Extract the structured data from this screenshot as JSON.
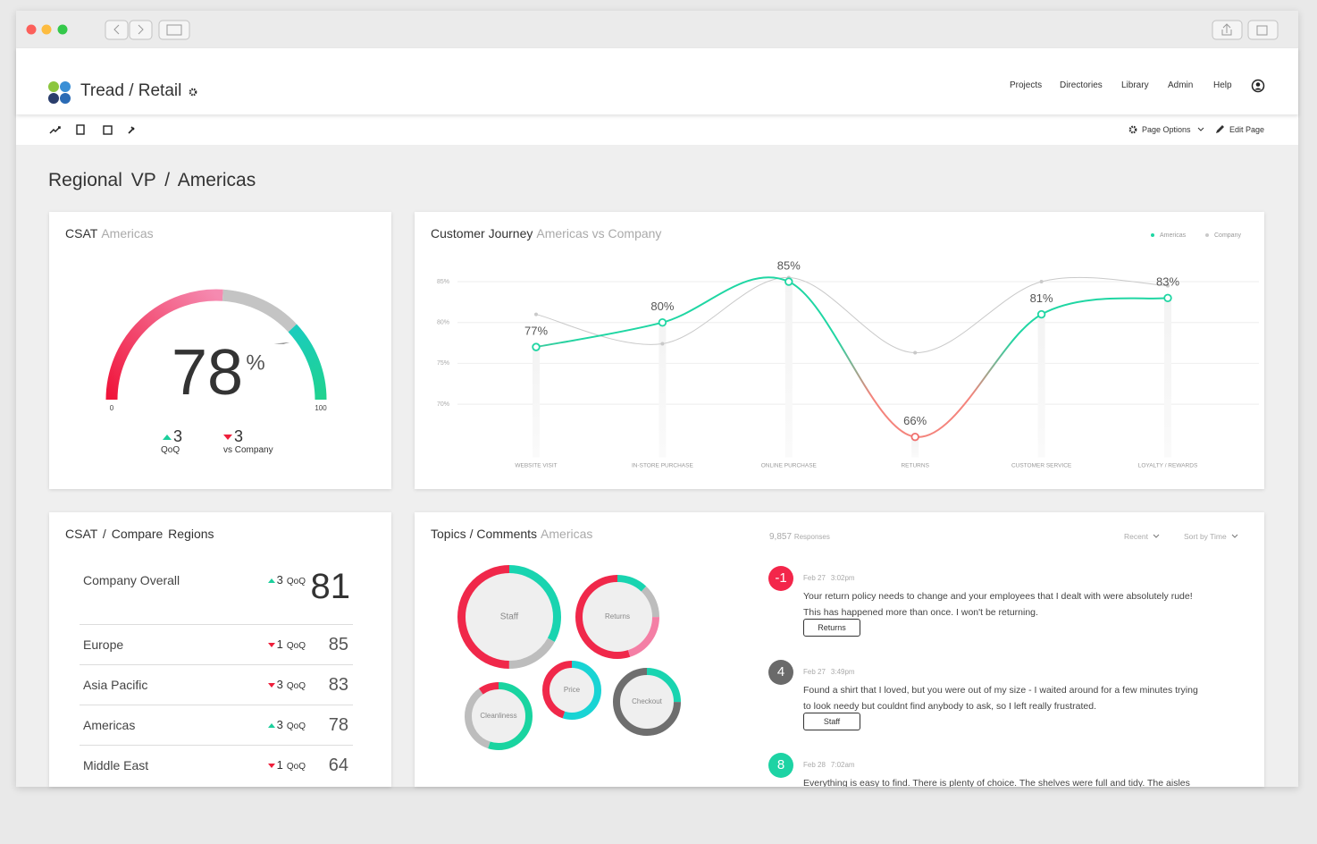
{
  "app": {
    "name": "Tread / Retail",
    "nav": [
      "Projects",
      "Directories",
      "Library",
      "Admin",
      "Help"
    ],
    "page_options": "Page Options",
    "edit_page": "Edit Page"
  },
  "page_title": "Regional VP / Americas",
  "colors": {
    "up": "#1ccf9c",
    "down": "#ee1f3b"
  },
  "csat": {
    "title": "CSAT",
    "subtitle": "Americas",
    "value": 78,
    "unit": "%",
    "min": 0,
    "max": 100,
    "changes": [
      {
        "value": 3,
        "trend": "up",
        "label": "QoQ"
      },
      {
        "value": 3,
        "trend": "down",
        "label": "vs Company"
      }
    ]
  },
  "chart_data": {
    "type": "line",
    "title": "Customer Journey",
    "subtitle": "Americas vs Company",
    "categories": [
      "WEBSITE VISIT",
      "IN-STORE PURCHASE",
      "ONLINE PURCHASE",
      "RETURNS",
      "CUSTOMER SERVICE",
      "LOYALTY / REWARDS"
    ],
    "series": [
      {
        "name": "Americas",
        "color": "#1fd6a3",
        "values": [
          77,
          80,
          85,
          66,
          81,
          83
        ],
        "value_labels": [
          "77%",
          "80%",
          "85%",
          "66%",
          "81%",
          "83%"
        ]
      },
      {
        "name": "Company",
        "color": "#c9c9c9",
        "values": [
          81,
          77.4,
          85.5,
          76.3,
          85,
          84.5
        ]
      }
    ],
    "ylim": [
      63.5,
      88
    ],
    "yticks": [
      {
        "value": 70,
        "label": "70%"
      },
      {
        "value": 75,
        "label": "75%"
      },
      {
        "value": 80,
        "label": "80%"
      },
      {
        "value": 85,
        "label": "85%"
      }
    ],
    "grid": true,
    "legend": "top-right"
  },
  "compare": {
    "title": "CSAT / Compare Regions",
    "period_label": "QoQ",
    "rows": [
      {
        "name": "Company Overall",
        "change": 3,
        "trend": "up",
        "score": 81
      },
      {
        "name": "Europe",
        "change": 1,
        "trend": "down",
        "score": 85
      },
      {
        "name": "Asia Pacific",
        "change": 3,
        "trend": "down",
        "score": 83
      },
      {
        "name": "Americas",
        "change": 3,
        "trend": "up",
        "score": 78
      },
      {
        "name": "Middle East",
        "change": 1,
        "trend": "down",
        "score": 64
      }
    ]
  },
  "topics": {
    "title": "Topics / Comments",
    "subtitle": "Americas",
    "items": [
      {
        "name": "Staff",
        "segments": [
          {
            "color": "#19d4b0",
            "value": 33
          },
          {
            "color": "#bdbdbd",
            "value": 17
          },
          {
            "color": "#f0284a",
            "value": 50
          }
        ]
      },
      {
        "name": "Returns",
        "segments": [
          {
            "color": "#19d4b0",
            "value": 12
          },
          {
            "color": "#bdbdbd",
            "value": 13
          },
          {
            "color": "#f47fa5",
            "value": 20
          },
          {
            "color": "#f0284a",
            "value": 55
          }
        ]
      },
      {
        "name": "Price",
        "segments": [
          {
            "color": "#19d4d4",
            "value": 55
          },
          {
            "color": "#f0284a",
            "value": 45
          }
        ]
      },
      {
        "name": "Cleanliness",
        "segments": [
          {
            "color": "#19d4a0",
            "value": 55
          },
          {
            "color": "#bdbdbd",
            "value": 35
          },
          {
            "color": "#f0284a",
            "value": 10
          }
        ]
      },
      {
        "name": "Checkout",
        "segments": [
          {
            "color": "#19d4b0",
            "value": 25
          },
          {
            "color": "#6e6e6e",
            "value": 75
          }
        ]
      }
    ]
  },
  "comments": {
    "responses": "9,857",
    "responses_label": "Responses",
    "filters": [
      "Recent",
      "Sort by Time"
    ],
    "items": [
      {
        "score": "-1",
        "color": "#f3264a",
        "date": "Feb 27",
        "time": "3:02pm",
        "text": "Your return policy needs to change and your employees that I dealt with were absolutely rude!  This has happened more than once.  I won't be returning.",
        "tag": "Returns"
      },
      {
        "score": "4",
        "color": "#6a6a6a",
        "date": "Feb 27",
        "time": "3:49pm",
        "text": "Found a shirt that I loved, but you were out of my size - I waited around for a few minutes trying to look needy but couldnt find anybody to ask, so I left really frustrated.",
        "tag": "Staff"
      },
      {
        "score": "8",
        "color": "#1dd3a4",
        "date": "Feb 28",
        "time": "7:02am",
        "text": "Everything is easy to find. There is plenty of choice. The shelves were full and tidy. The aisles were"
      }
    ]
  }
}
